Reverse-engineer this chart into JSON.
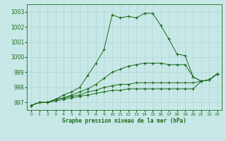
{
  "xlabel": "Graphe pression niveau de la mer (hPa)",
  "background_color": "#c8e8e8",
  "grid_color": "#b0d4d4",
  "line_color": "#1a6b1a",
  "ylim": [
    996.5,
    1003.5
  ],
  "xlim": [
    -0.5,
    23.5
  ],
  "yticks": [
    997,
    998,
    999,
    1000,
    1001,
    1002,
    1003
  ],
  "xticks": [
    0,
    1,
    2,
    3,
    4,
    5,
    6,
    7,
    8,
    9,
    10,
    11,
    12,
    13,
    14,
    15,
    16,
    17,
    18,
    19,
    20,
    21,
    22,
    23
  ],
  "series": [
    [
      996.8,
      997.0,
      997.0,
      997.2,
      997.5,
      997.7,
      998.0,
      998.8,
      999.6,
      1000.5,
      1002.8,
      1002.6,
      1002.7,
      1002.6,
      1002.9,
      1002.9,
      1002.1,
      1001.2,
      1000.2,
      1000.1,
      998.7,
      998.4,
      998.5,
      998.9
    ],
    [
      996.8,
      997.0,
      997.0,
      997.2,
      997.3,
      997.5,
      997.7,
      997.9,
      998.2,
      998.6,
      999.0,
      999.2,
      999.4,
      999.5,
      999.6,
      999.6,
      999.6,
      999.5,
      999.5,
      999.5,
      998.7,
      998.4,
      998.5,
      998.9
    ],
    [
      996.8,
      997.0,
      997.0,
      997.2,
      997.3,
      997.4,
      997.5,
      997.7,
      997.8,
      998.0,
      998.1,
      998.2,
      998.2,
      998.3,
      998.3,
      998.3,
      998.3,
      998.3,
      998.3,
      998.3,
      998.3,
      998.4,
      998.5,
      998.9
    ],
    [
      996.8,
      997.0,
      997.0,
      997.1,
      997.2,
      997.3,
      997.4,
      997.5,
      997.6,
      997.7,
      997.8,
      997.8,
      997.9,
      997.9,
      997.9,
      997.9,
      997.9,
      997.9,
      997.9,
      997.9,
      997.9,
      998.4,
      998.5,
      998.9
    ]
  ]
}
